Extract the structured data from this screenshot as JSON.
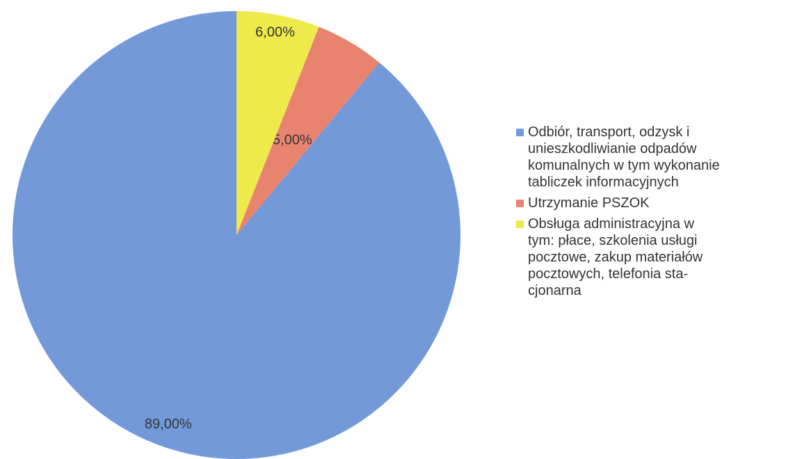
{
  "chart_data": {
    "type": "pie",
    "series": [
      {
        "name": "Odbiór, transport, odzysk i\nunieszkodliwianie odpadów\nkomunalnych w tym wykonanie\ntabliczek informacyjnych",
        "color": "#7399d8",
        "values": [
          89
        ],
        "value_labels": [
          "89,00%"
        ]
      },
      {
        "name": "Utrzymanie PSZOK",
        "color": "#e8836f",
        "values": [
          5
        ],
        "value_labels": [
          "5,00%"
        ]
      },
      {
        "name": "Obsługa administracyjna w\ntym: płace, szkolenia usługi\npocztowe, zakup materiałów\npocztowych, telefonia sta-\ncjonarna",
        "color": "#eeea4c",
        "values": [
          6
        ],
        "value_labels": [
          "6,00%"
        ]
      }
    ]
  }
}
